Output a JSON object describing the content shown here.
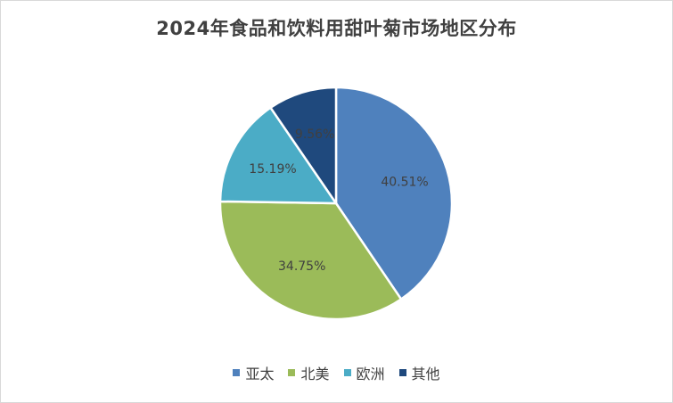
{
  "chart_data": {
    "type": "pie",
    "title": "2024年食品和饮料用甜叶菊市场地区分布",
    "categories": [
      "亚太",
      "北美",
      "欧洲",
      "其他"
    ],
    "values": [
      40.51,
      34.75,
      15.19,
      9.56
    ],
    "labels": [
      "40.51%",
      "34.75%",
      "15.19%",
      "9.56%"
    ],
    "colors": [
      "#4f81bd",
      "#9bbb59",
      "#4bacc6",
      "#1f497d"
    ],
    "legend_position": "bottom"
  }
}
